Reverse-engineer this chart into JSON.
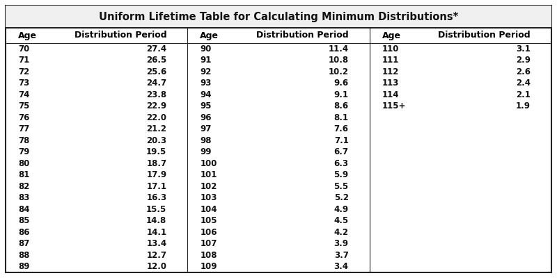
{
  "title": "Uniform Lifetime Table for Calculating Minimum Distributions*",
  "col1_ages": [
    "70",
    "71",
    "72",
    "73",
    "74",
    "75",
    "76",
    "77",
    "78",
    "79",
    "80",
    "81",
    "82",
    "83",
    "84",
    "85",
    "86",
    "87",
    "88",
    "89"
  ],
  "col1_dist": [
    "27.4",
    "26.5",
    "25.6",
    "24.7",
    "23.8",
    "22.9",
    "22.0",
    "21.2",
    "20.3",
    "19.5",
    "18.7",
    "17.9",
    "17.1",
    "16.3",
    "15.5",
    "14.8",
    "14.1",
    "13.4",
    "12.7",
    "12.0"
  ],
  "col2_ages": [
    "90",
    "91",
    "92",
    "93",
    "94",
    "95",
    "96",
    "97",
    "98",
    "99",
    "100",
    "101",
    "102",
    "103",
    "104",
    "105",
    "106",
    "107",
    "108",
    "109"
  ],
  "col2_dist": [
    "11.4",
    "10.8",
    "10.2",
    "9.6",
    "9.1",
    "8.6",
    "8.1",
    "7.6",
    "7.1",
    "6.7",
    "6.3",
    "5.9",
    "5.5",
    "5.2",
    "4.9",
    "4.5",
    "4.2",
    "3.9",
    "3.7",
    "3.4"
  ],
  "col3_ages": [
    "110",
    "111",
    "112",
    "113",
    "114",
    "115+"
  ],
  "col3_dist": [
    "3.1",
    "2.9",
    "2.6",
    "2.4",
    "2.1",
    "1.9"
  ],
  "header_age": "Age",
  "header_dist": "Distribution Period",
  "bg_color": "#ffffff",
  "border_color": "#222222",
  "title_bg": "#f0f0f0",
  "title_fontsize": 10.5,
  "header_fontsize": 9,
  "data_fontsize": 8.5
}
